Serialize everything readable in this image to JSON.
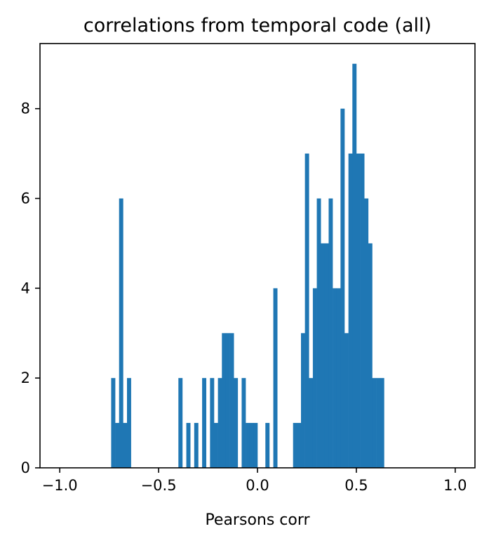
{
  "colors": {
    "bar": "#1f77b4",
    "axes": "#000000",
    "background": "#ffffff"
  },
  "chart_data": {
    "type": "bar",
    "title": "correlations from temporal code (all)",
    "xlabel": "Pearsons corr",
    "ylabel": "",
    "xlim": [
      -1.1,
      1.1
    ],
    "ylim": [
      0,
      9.45
    ],
    "grid": false,
    "bin_width": 0.02,
    "x_ticks": [
      -1.0,
      -0.5,
      0.0,
      0.5,
      1.0
    ],
    "x_tick_labels": [
      "−1.0",
      "−0.5",
      "0.0",
      "0.5",
      "1.0"
    ],
    "y_ticks": [
      0,
      2,
      4,
      6,
      8
    ],
    "y_tick_labels": [
      "0",
      "2",
      "4",
      "6",
      "8"
    ],
    "bins": [
      {
        "start": -0.74,
        "value": 2
      },
      {
        "start": -0.72,
        "value": 1
      },
      {
        "start": -0.7,
        "value": 6
      },
      {
        "start": -0.68,
        "value": 1
      },
      {
        "start": -0.66,
        "value": 2
      },
      {
        "start": -0.4,
        "value": 2
      },
      {
        "start": -0.36,
        "value": 1
      },
      {
        "start": -0.32,
        "value": 1
      },
      {
        "start": -0.28,
        "value": 2
      },
      {
        "start": -0.24,
        "value": 2
      },
      {
        "start": -0.22,
        "value": 1
      },
      {
        "start": -0.2,
        "value": 2
      },
      {
        "start": -0.18,
        "value": 3
      },
      {
        "start": -0.16,
        "value": 3
      },
      {
        "start": -0.14,
        "value": 3
      },
      {
        "start": -0.12,
        "value": 2
      },
      {
        "start": -0.08,
        "value": 2
      },
      {
        "start": -0.06,
        "value": 1
      },
      {
        "start": -0.04,
        "value": 1
      },
      {
        "start": -0.02,
        "value": 1
      },
      {
        "start": 0.04,
        "value": 1
      },
      {
        "start": 0.08,
        "value": 4
      },
      {
        "start": 0.18,
        "value": 1
      },
      {
        "start": 0.2,
        "value": 1
      },
      {
        "start": 0.22,
        "value": 3
      },
      {
        "start": 0.24,
        "value": 7
      },
      {
        "start": 0.26,
        "value": 2
      },
      {
        "start": 0.28,
        "value": 4
      },
      {
        "start": 0.3,
        "value": 6
      },
      {
        "start": 0.32,
        "value": 5
      },
      {
        "start": 0.34,
        "value": 5
      },
      {
        "start": 0.36,
        "value": 6
      },
      {
        "start": 0.38,
        "value": 4
      },
      {
        "start": 0.4,
        "value": 4
      },
      {
        "start": 0.42,
        "value": 8
      },
      {
        "start": 0.44,
        "value": 3
      },
      {
        "start": 0.46,
        "value": 7
      },
      {
        "start": 0.48,
        "value": 9
      },
      {
        "start": 0.5,
        "value": 7
      },
      {
        "start": 0.52,
        "value": 7
      },
      {
        "start": 0.54,
        "value": 6
      },
      {
        "start": 0.56,
        "value": 5
      },
      {
        "start": 0.58,
        "value": 2
      },
      {
        "start": 0.6,
        "value": 2
      },
      {
        "start": 0.62,
        "value": 2
      }
    ]
  }
}
